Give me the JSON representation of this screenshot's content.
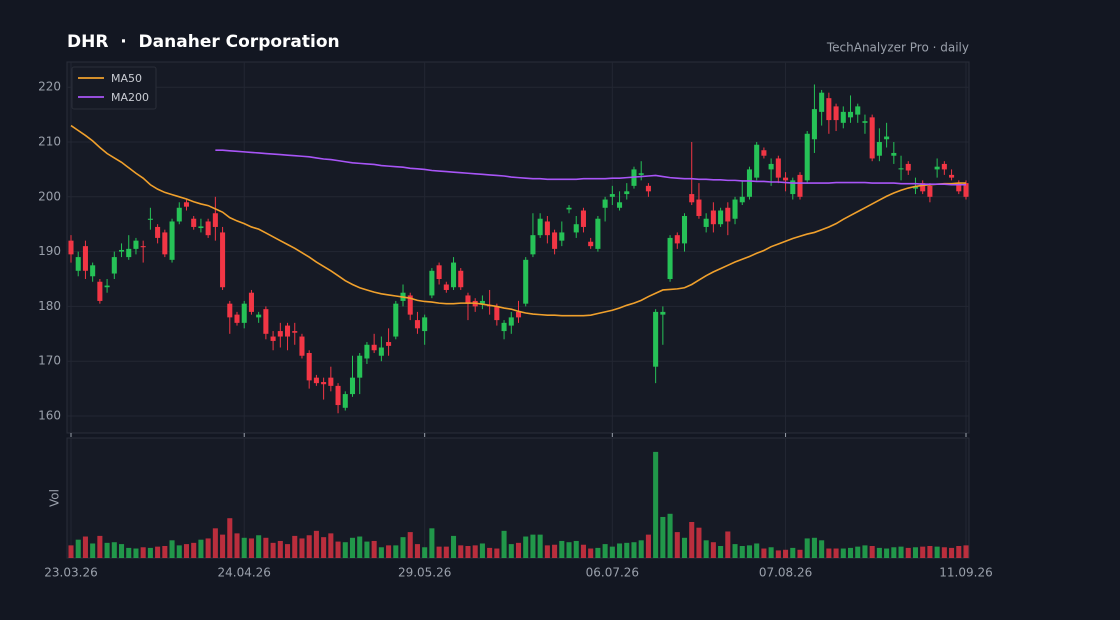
{
  "chart_data": {
    "type": "candlestick",
    "title": "DHR  ·  Danaher Corporation",
    "subtitle": "TechAnalyzer Pro · daily",
    "x": [
      "23.03.26",
      "24.03.26",
      "25.03.26",
      "26.03.26",
      "27.03.26",
      "30.03.26",
      "31.03.26",
      "01.04.26",
      "02.04.26",
      "03.04.26",
      "06.04.26",
      "07.04.26",
      "08.04.26",
      "09.04.26",
      "10.04.26",
      "13.04.26",
      "14.04.26",
      "15.04.26",
      "16.04.26",
      "17.04.26",
      "20.04.26",
      "21.04.26",
      "22.04.26",
      "23.04.26",
      "24.04.26",
      "27.04.26",
      "28.04.26",
      "29.04.26",
      "30.04.26",
      "01.05.26",
      "04.05.26",
      "05.05.26",
      "06.05.26",
      "07.05.26",
      "08.05.26",
      "11.05.26",
      "12.05.26",
      "13.05.26",
      "14.05.26",
      "15.05.26",
      "18.05.26",
      "19.05.26",
      "20.05.26",
      "21.05.26",
      "22.05.26",
      "25.05.26",
      "26.05.26",
      "27.05.26",
      "28.05.26",
      "29.05.26",
      "01.06.26",
      "02.06.26",
      "03.06.26",
      "04.06.26",
      "05.06.26",
      "08.06.26",
      "09.06.26",
      "10.06.26",
      "11.06.26",
      "12.06.26",
      "15.06.26",
      "16.06.26",
      "17.06.26",
      "18.06.26",
      "19.06.26",
      "22.06.26",
      "23.06.26",
      "24.06.26",
      "25.06.26",
      "26.06.26",
      "29.06.26",
      "30.06.26",
      "01.07.26",
      "02.07.26",
      "03.07.26",
      "06.07.26",
      "07.07.26",
      "08.07.26",
      "09.07.26",
      "10.07.26",
      "13.07.26",
      "14.07.26",
      "15.07.26",
      "16.07.26",
      "17.07.26",
      "20.07.26",
      "21.07.26",
      "22.07.26",
      "23.07.26",
      "24.07.26",
      "27.07.26",
      "28.07.26",
      "29.07.26",
      "30.07.26",
      "31.07.26",
      "03.08.26",
      "04.08.26",
      "05.08.26",
      "06.08.26",
      "07.08.26",
      "10.08.26",
      "11.08.26",
      "12.08.26",
      "13.08.26",
      "14.08.26",
      "17.08.26",
      "18.08.26",
      "19.08.26",
      "20.08.26",
      "21.08.26",
      "24.08.26",
      "25.08.26",
      "26.08.26",
      "27.08.26",
      "28.08.26",
      "31.08.26",
      "01.09.26",
      "02.09.26",
      "03.09.26",
      "04.09.26",
      "07.09.26",
      "08.09.26",
      "09.09.26",
      "10.09.26",
      "11.09.26"
    ],
    "xticks": [
      "23.03.26",
      "24.04.26",
      "29.05.26",
      "06.07.26",
      "07.08.26",
      "11.09.26"
    ],
    "open": [
      192,
      186.5,
      191,
      185.5,
      184.5,
      183.5,
      186,
      190,
      189,
      190.5,
      191,
      195.8,
      194.5,
      193.5,
      188.5,
      195.5,
      199,
      196,
      194.3,
      195.5,
      197,
      193.5,
      180.5,
      178.5,
      177,
      182.5,
      178,
      179.5,
      174.5,
      175.5,
      176.5,
      175.5,
      174.5,
      171.5,
      167,
      166.2,
      167,
      165.5,
      161.5,
      164,
      167,
      170.5,
      173,
      171,
      173.5,
      174.5,
      181,
      182,
      177.5,
      175.5,
      182,
      187.5,
      184,
      183.5,
      186.5,
      182,
      181,
      180.5,
      180.2,
      180,
      175.5,
      176.5,
      179,
      180.5,
      189.5,
      193,
      195.5,
      193.5,
      192,
      197.7,
      193.5,
      197.5,
      191.8,
      190.5,
      198,
      200,
      198,
      200.5,
      202,
      204,
      202,
      169,
      178.5,
      185,
      193,
      191.5,
      200.5,
      199.5,
      194.5,
      197.5,
      195,
      198,
      196,
      199,
      200,
      203.5,
      208.5,
      205,
      207,
      203.5,
      200.5,
      204,
      203,
      210.5,
      215.5,
      218,
      216.5,
      213.5,
      214.5,
      215,
      213.5,
      214.5,
      207.5,
      210.5,
      207.5,
      205,
      206,
      201.5,
      202.5,
      202,
      205,
      206,
      204,
      202.5,
      202.5
    ],
    "high": [
      193,
      190,
      192,
      188,
      185,
      185,
      190,
      191.5,
      193,
      192.5,
      192,
      198,
      195,
      194,
      196,
      199,
      199.5,
      196.5,
      196,
      196,
      200,
      194.5,
      181,
      179,
      181,
      183,
      179,
      180,
      175.5,
      177,
      177,
      177,
      175,
      172,
      167.5,
      167,
      169,
      166,
      164.5,
      171,
      171.5,
      173.5,
      175,
      174.5,
      176,
      181,
      184,
      182.5,
      179,
      178.5,
      187,
      188,
      184.5,
      189,
      187,
      182.5,
      181.5,
      182,
      183,
      180.5,
      177.5,
      179,
      181,
      189,
      197,
      197,
      196.5,
      194,
      195.5,
      198.5,
      196.5,
      198,
      192.5,
      196.5,
      200,
      202,
      201,
      202.5,
      205.5,
      206.5,
      202.5,
      179.5,
      180,
      193,
      193.5,
      197,
      210,
      202.5,
      197,
      199,
      198,
      199,
      200,
      203,
      205.5,
      210,
      209,
      207,
      207.5,
      204.5,
      203.5,
      204.5,
      212,
      220.5,
      219.5,
      219,
      217,
      216.5,
      218.5,
      217,
      215,
      215,
      212.5,
      213.5,
      210,
      207.5,
      206.5,
      203.5,
      203,
      202.5,
      207,
      206.5,
      205,
      203,
      203
    ],
    "low": [
      188,
      185.5,
      185,
      184.5,
      180.5,
      182.5,
      185,
      189,
      188.5,
      189.5,
      188,
      194,
      191.5,
      189,
      188,
      195,
      197.5,
      194,
      193.5,
      192.5,
      192,
      183,
      175,
      176.5,
      176,
      178.5,
      177,
      174,
      172,
      172.5,
      172,
      173,
      170.5,
      165,
      165.5,
      163,
      164.5,
      160.5,
      161,
      163.5,
      164,
      169.5,
      171.5,
      170,
      171,
      174,
      180,
      177.5,
      175,
      173,
      181.5,
      184,
      182.5,
      183,
      183,
      177.5,
      179,
      179.5,
      178.5,
      176.5,
      174,
      175,
      177,
      180,
      189,
      192.5,
      191.5,
      189.5,
      191,
      197,
      192.5,
      193.5,
      190.5,
      190,
      195.5,
      198.5,
      197.5,
      199.5,
      201.5,
      203,
      200,
      166,
      173,
      184.5,
      190.5,
      190,
      198.5,
      196,
      193.5,
      193.5,
      194.5,
      193,
      195,
      198.5,
      199.5,
      203,
      207,
      202,
      202.5,
      201,
      199.5,
      199.5,
      202.5,
      208,
      213,
      211.5,
      212,
      212.5,
      213.5,
      213.5,
      211.5,
      206.5,
      206.5,
      209,
      206,
      203,
      204,
      200.5,
      200.5,
      199,
      203.5,
      204,
      203,
      200.5,
      199.5
    ],
    "close": [
      189.5,
      189,
      186.5,
      187.5,
      181,
      183.8,
      189,
      190.3,
      190.5,
      192,
      190.8,
      196,
      192.5,
      189.5,
      195.5,
      198,
      198.2,
      194.5,
      194.6,
      193,
      194.5,
      183.5,
      178,
      177,
      180.5,
      179,
      178.5,
      175,
      173.7,
      174.5,
      174.5,
      175.2,
      171,
      166.5,
      166,
      165.8,
      165.5,
      162,
      164,
      167,
      171,
      173,
      172,
      172.5,
      172.8,
      180.5,
      182.5,
      178.5,
      176,
      178,
      186.5,
      185,
      183,
      188,
      183.5,
      180.5,
      180,
      181,
      180,
      177.5,
      177,
      178,
      178,
      188.5,
      193,
      196,
      193,
      190.5,
      193.5,
      198,
      195,
      194.5,
      191,
      196,
      199.5,
      200.5,
      199,
      201,
      205,
      204.3,
      201,
      179,
      179,
      192.5,
      191.5,
      196.5,
      199,
      196.5,
      196,
      195,
      197.5,
      195.5,
      199.5,
      200,
      205,
      209.5,
      207.5,
      206,
      203.5,
      203,
      203,
      200,
      211.5,
      216,
      219,
      214,
      214,
      215.5,
      215.5,
      216.5,
      213.8,
      207,
      210,
      211,
      208,
      205.2,
      204.8,
      201.8,
      201,
      200,
      205.5,
      205,
      203.5,
      201,
      200
    ],
    "volume": [
      2.0,
      2.9,
      3.4,
      2.3,
      3.5,
      2.4,
      2.5,
      2.2,
      1.6,
      1.5,
      1.7,
      1.6,
      1.8,
      1.9,
      2.8,
      2.0,
      2.2,
      2.4,
      2.9,
      3.1,
      4.7,
      3.7,
      6.3,
      3.9,
      3.2,
      3.1,
      3.6,
      3.2,
      2.4,
      2.7,
      2.2,
      3.5,
      3.1,
      3.6,
      4.3,
      3.3,
      3.9,
      2.6,
      2.5,
      3.2,
      3.4,
      2.6,
      2.7,
      1.7,
      2.0,
      2.0,
      3.3,
      4.1,
      2.2,
      1.7,
      4.7,
      1.8,
      1.8,
      3.5,
      2.0,
      1.9,
      2.0,
      2.3,
      1.6,
      1.5,
      4.3,
      2.2,
      2.4,
      3.4,
      3.7,
      3.7,
      2.0,
      2.1,
      2.7,
      2.5,
      2.7,
      2.1,
      1.5,
      1.6,
      2.2,
      1.8,
      2.3,
      2.4,
      2.5,
      2.8,
      3.7,
      16.8,
      6.5,
      7.0,
      4.1,
      3.2,
      5.7,
      4.8,
      2.8,
      2.5,
      1.9,
      4.2,
      2.2,
      1.9,
      2.0,
      2.3,
      1.5,
      1.7,
      1.2,
      1.3,
      1.6,
      1.3,
      3.1,
      3.2,
      2.8,
      1.5,
      1.5,
      1.5,
      1.6,
      1.8,
      2.0,
      1.9,
      1.6,
      1.5,
      1.7,
      1.8,
      1.6,
      1.7,
      1.8,
      1.9,
      1.8,
      1.7,
      1.6,
      1.9,
      2.0
    ],
    "lines": [
      {
        "name": "MA50",
        "color": "#f0a02c",
        "values": [
          213.0,
          212.1,
          211.2,
          210.2,
          209.0,
          207.9,
          207.1,
          206.3,
          205.3,
          204.3,
          203.4,
          202.2,
          201.4,
          200.8,
          200.4,
          200.0,
          199.6,
          199.1,
          198.7,
          198.4,
          197.8,
          197.2,
          196.2,
          195.6,
          195.1,
          194.5,
          194.1,
          193.4,
          192.7,
          192.0,
          191.3,
          190.6,
          189.8,
          189.0,
          188.1,
          187.3,
          186.5,
          185.6,
          184.7,
          184.0,
          183.4,
          183.0,
          182.6,
          182.3,
          182.1,
          181.9,
          181.7,
          181.5,
          181.1,
          180.9,
          180.8,
          180.6,
          180.5,
          180.5,
          180.6,
          180.6,
          180.6,
          180.4,
          180.2,
          180.0,
          179.7,
          179.5,
          179.1,
          178.8,
          178.6,
          178.5,
          178.4,
          178.4,
          178.3,
          178.3,
          178.3,
          178.3,
          178.4,
          178.7,
          179.0,
          179.3,
          179.7,
          180.2,
          180.6,
          181.1,
          181.8,
          182.4,
          183.0,
          183.1,
          183.2,
          183.4,
          184.0,
          184.8,
          185.6,
          186.3,
          186.9,
          187.5,
          188.1,
          188.6,
          189.1,
          189.7,
          190.2,
          190.9,
          191.4,
          191.9,
          192.4,
          192.8,
          193.2,
          193.5,
          194.0,
          194.5,
          195.1,
          195.9,
          196.6,
          197.3,
          198.0,
          198.7,
          199.4,
          200.1,
          200.7,
          201.2,
          201.6,
          201.9,
          202.1,
          202.2,
          202.3,
          202.4,
          202.4,
          202.5,
          202.5
        ]
      },
      {
        "name": "MA200",
        "color": "#a855f7",
        "values": [
          null,
          null,
          null,
          null,
          null,
          null,
          null,
          null,
          null,
          null,
          null,
          null,
          null,
          null,
          null,
          null,
          null,
          null,
          null,
          null,
          208.5,
          208.5,
          208.4,
          208.3,
          208.2,
          208.1,
          208.0,
          207.9,
          207.8,
          207.7,
          207.6,
          207.5,
          207.4,
          207.3,
          207.1,
          206.9,
          206.8,
          206.6,
          206.4,
          206.2,
          206.1,
          206.0,
          205.9,
          205.7,
          205.6,
          205.5,
          205.4,
          205.2,
          205.1,
          205.0,
          204.8,
          204.7,
          204.6,
          204.5,
          204.4,
          204.3,
          204.2,
          204.1,
          204.0,
          203.9,
          203.8,
          203.6,
          203.5,
          203.4,
          203.3,
          203.3,
          203.2,
          203.2,
          203.2,
          203.2,
          203.2,
          203.3,
          203.3,
          203.3,
          203.3,
          203.4,
          203.4,
          203.5,
          203.6,
          203.7,
          203.8,
          203.9,
          203.7,
          203.5,
          203.4,
          203.3,
          203.3,
          203.2,
          203.2,
          203.1,
          203.1,
          203.0,
          203.0,
          202.9,
          202.9,
          202.8,
          202.8,
          202.7,
          202.7,
          202.6,
          202.5,
          202.5,
          202.5,
          202.5,
          202.5,
          202.5,
          202.6,
          202.6,
          202.6,
          202.6,
          202.6,
          202.5,
          202.5,
          202.5,
          202.5,
          202.4,
          202.4,
          202.4,
          202.3,
          202.3,
          202.3,
          202.3,
          202.2,
          202.2,
          202.2
        ]
      }
    ],
    "up_color": "#26c257",
    "down_color": "#f23645",
    "ylim": [
      156.9,
      224.6
    ],
    "yticks": [
      160,
      170,
      180,
      190,
      200,
      210,
      220
    ],
    "volume_label": "Vol",
    "volume_ylim": [
      0,
      19
    ],
    "legend": "upper left",
    "grid": true
  }
}
